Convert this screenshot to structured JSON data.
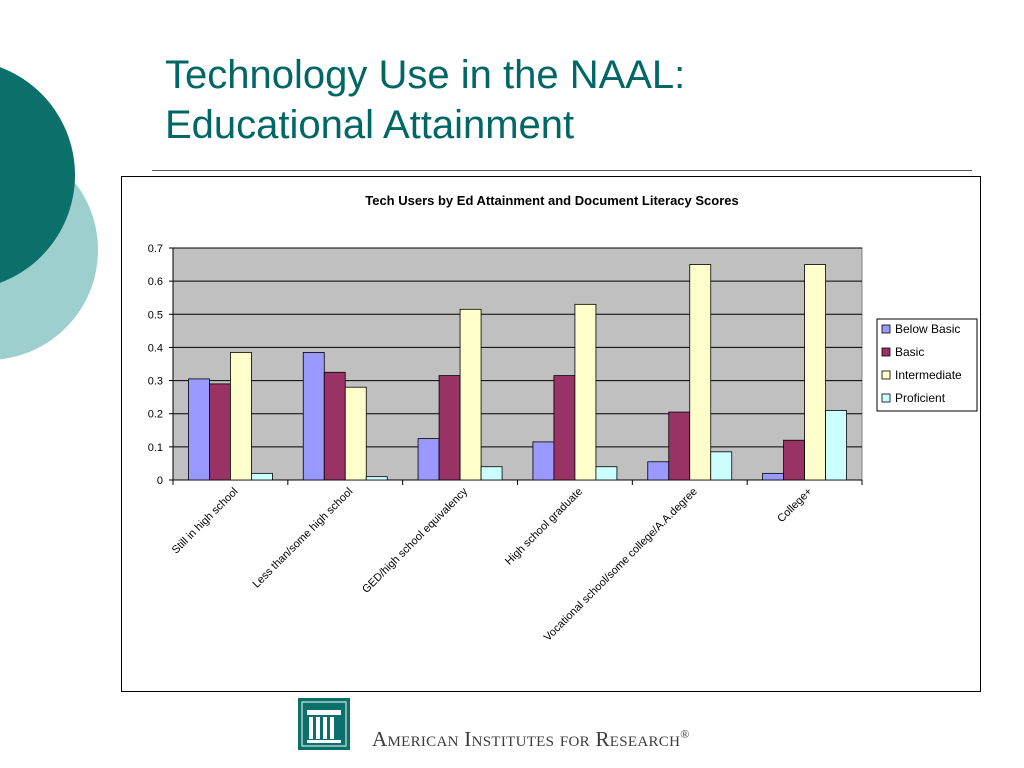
{
  "slide": {
    "title_line1": "Technology Use in the NAAL:",
    "title_line2": "Educational Attainment"
  },
  "footer": {
    "org_name": "American Institutes for Research",
    "trademark": "®"
  },
  "colors": {
    "title": "#006666",
    "plot_bg": "#c0c0c0",
    "deco_dark": "#0b6f6a",
    "deco_light": "#9ccfcd"
  },
  "chart_data": {
    "type": "bar",
    "title": "Tech Users by Ed Attainment and Document Literacy Scores",
    "categories": [
      "Still in high school",
      "Less than/some high school",
      "GED/high school equivalency",
      "High school graduate",
      "Vocational school/some college/A.A.degree",
      "College+"
    ],
    "series": [
      {
        "name": "Below  Basic",
        "color": "#9999ff",
        "values": [
          0.305,
          0.385,
          0.125,
          0.115,
          0.055,
          0.02
        ]
      },
      {
        "name": "Basic",
        "color": "#993366",
        "values": [
          0.29,
          0.325,
          0.315,
          0.315,
          0.205,
          0.12
        ]
      },
      {
        "name": "Intermediate",
        "color": "#ffffcc",
        "values": [
          0.385,
          0.28,
          0.515,
          0.53,
          0.65,
          0.65
        ]
      },
      {
        "name": "Proficient",
        "color": "#ccffff",
        "values": [
          0.02,
          0.01,
          0.04,
          0.04,
          0.085,
          0.21
        ]
      }
    ],
    "ylim": [
      0,
      0.7
    ],
    "yticks": [
      "0",
      "0.1",
      "0.2",
      "0.3",
      "0.4",
      "0.5",
      "0.6",
      "0.7"
    ],
    "grid": true,
    "legend": "right"
  }
}
